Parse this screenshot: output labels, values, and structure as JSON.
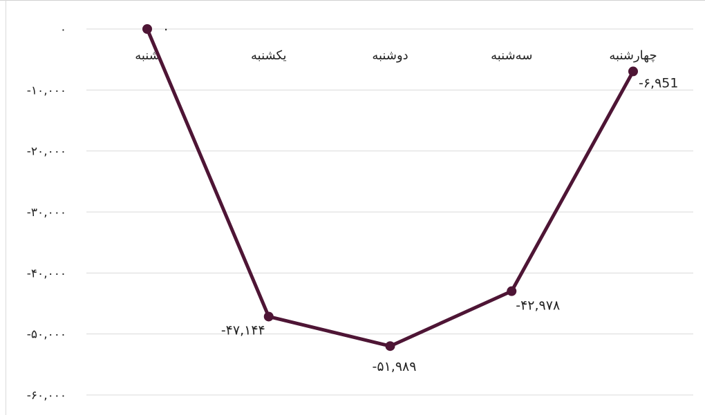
{
  "chart_data": {
    "type": "line",
    "categories": [
      "شنبه",
      "یکشنبه",
      "دوشنبه",
      "سه‌شنبه",
      "چهارشنبه"
    ],
    "series": [
      {
        "values": [
          0,
          -47144,
          -51989,
          -42978,
          -6951
        ],
        "data_labels": [
          "۰",
          "-۴۷,۱۴۴",
          "-۵۱,۹۸۹",
          "-۴۲,۹۷۸",
          "-۶,۹51"
        ]
      }
    ],
    "y_ticks": [
      0,
      -10000,
      -20000,
      -30000,
      -40000,
      -50000,
      -60000
    ],
    "y_tick_labels": [
      "۰",
      "-۱۰,۰۰۰",
      "-۲۰,۰۰۰",
      "-۳۰,۰۰۰",
      "-۴۰,۰۰۰",
      "-۵۰,۰۰۰",
      "-۶۰,۰۰۰"
    ],
    "ylim": [
      -60000,
      0
    ],
    "grid": true,
    "legend": "none",
    "colors": {
      "line": "#4e1535",
      "grid": "#d9d9d9",
      "text": "#222222"
    }
  }
}
